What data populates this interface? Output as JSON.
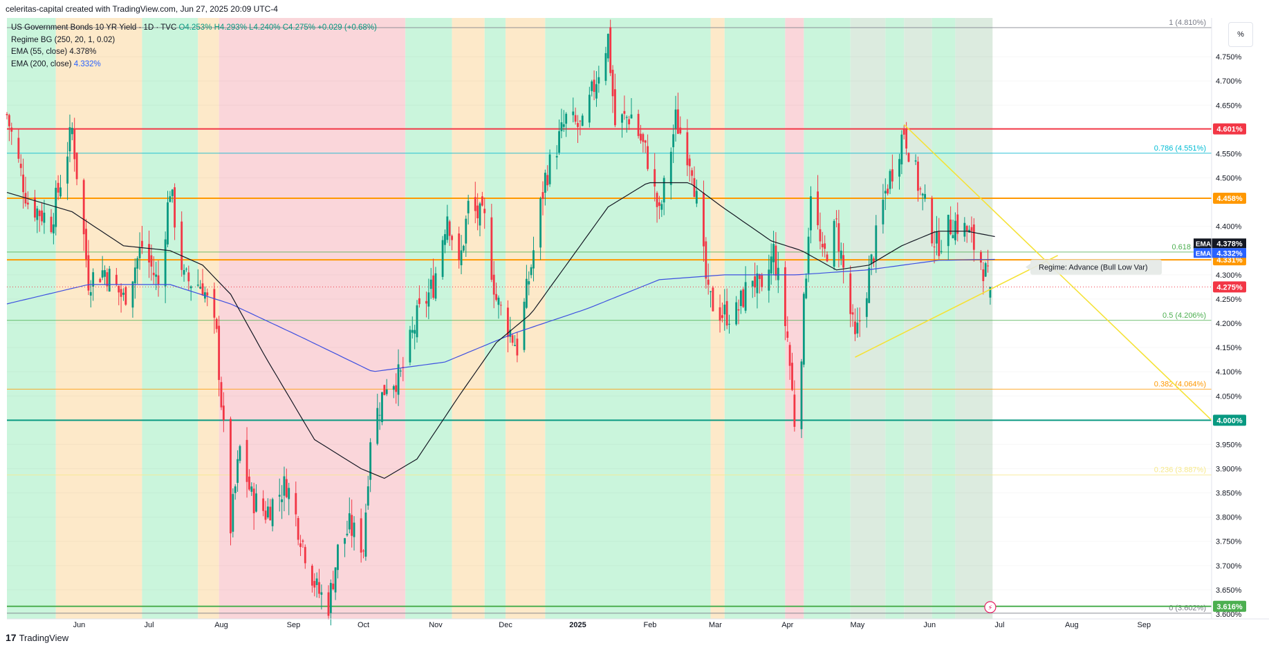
{
  "header": {
    "title": "celeritas-capital created with TradingView.com, Jun 27, 2025 20:09 UTC-4"
  },
  "legend": {
    "symbol": "US Government Bonds 10 YR Yield · 1D · TVC",
    "ohlc": "O4.253% H4.293% L4.240% C4.275% +0.029 (+0.68%)",
    "regime": "Regime BG (250, 20, 1, 0.02)",
    "ema55_label": "EMA (55, close)",
    "ema55_value": "4.378%",
    "ema200_label": "EMA (200, close)",
    "ema200_value": "4.332%"
  },
  "footer": {
    "brand": "TradingView"
  },
  "scale_button": "%",
  "chart_data": {
    "type": "candlestick",
    "title": "US Government Bonds 10 YR Yield",
    "ylim": [
      3.59,
      4.83
    ],
    "y_ticks": [
      "4.750%",
      "4.700%",
      "4.650%",
      "4.550%",
      "4.500%",
      "4.400%",
      "4.300%",
      "4.250%",
      "4.200%",
      "4.150%",
      "4.100%",
      "4.050%",
      "3.950%",
      "3.900%",
      "3.850%",
      "3.800%",
      "3.750%",
      "3.700%",
      "3.650%",
      "3.600%"
    ],
    "x_ticks": [
      "Jun",
      "Jul",
      "Aug",
      "Sep",
      "Oct",
      "Nov",
      "Dec",
      "2025",
      "Feb",
      "Mar",
      "Apr",
      "May",
      "Jun",
      "Jul",
      "Aug",
      "Sep"
    ],
    "date_range": [
      "2024-05-01",
      "2025-09-30"
    ],
    "last_bar_date": "2025-06-27",
    "close_anchors": [
      [
        "2024-05-01",
        4.63
      ],
      [
        "2024-05-10",
        4.45
      ],
      [
        "2024-05-20",
        4.41
      ],
      [
        "2024-05-29",
        4.6
      ],
      [
        "2024-06-05",
        4.29
      ],
      [
        "2024-06-12",
        4.31
      ],
      [
        "2024-06-20",
        4.25
      ],
      [
        "2024-06-28",
        4.36
      ],
      [
        "2024-07-05",
        4.28
      ],
      [
        "2024-07-10",
        4.48
      ],
      [
        "2024-07-16",
        4.29
      ],
      [
        "2024-07-24",
        4.28
      ],
      [
        "2024-07-30",
        4.17
      ],
      [
        "2024-08-05",
        3.78
      ],
      [
        "2024-08-09",
        3.94
      ],
      [
        "2024-08-14",
        3.84
      ],
      [
        "2024-08-20",
        3.81
      ],
      [
        "2024-08-29",
        3.87
      ],
      [
        "2024-09-06",
        3.73
      ],
      [
        "2024-09-11",
        3.65
      ],
      [
        "2024-09-16",
        3.62
      ],
      [
        "2024-09-20",
        3.73
      ],
      [
        "2024-09-25",
        3.78
      ],
      [
        "2024-10-01",
        3.74
      ],
      [
        "2024-10-04",
        3.97
      ],
      [
        "2024-10-11",
        4.08
      ],
      [
        "2024-10-17",
        4.09
      ],
      [
        "2024-10-24",
        4.21
      ],
      [
        "2024-10-31",
        4.28
      ],
      [
        "2024-11-06",
        4.43
      ],
      [
        "2024-11-11",
        4.31
      ],
      [
        "2024-11-15",
        4.44
      ],
      [
        "2024-11-22",
        4.41
      ],
      [
        "2024-11-27",
        4.25
      ],
      [
        "2024-12-06",
        4.15
      ],
      [
        "2024-12-12",
        4.32
      ],
      [
        "2024-12-18",
        4.5
      ],
      [
        "2024-12-27",
        4.62
      ],
      [
        "2025-01-03",
        4.6
      ],
      [
        "2025-01-08",
        4.69
      ],
      [
        "2025-01-14",
        4.79
      ],
      [
        "2025-01-17",
        4.61
      ],
      [
        "2025-01-24",
        4.63
      ],
      [
        "2025-01-31",
        4.54
      ],
      [
        "2025-02-05",
        4.42
      ],
      [
        "2025-02-12",
        4.62
      ],
      [
        "2025-02-19",
        4.53
      ],
      [
        "2025-02-26",
        4.25
      ],
      [
        "2025-03-04",
        4.22
      ],
      [
        "2025-03-10",
        4.22
      ],
      [
        "2025-03-17",
        4.3
      ],
      [
        "2025-03-21",
        4.25
      ],
      [
        "2025-03-26",
        4.35
      ],
      [
        "2025-04-01",
        4.17
      ],
      [
        "2025-04-04",
        4.0
      ],
      [
        "2025-04-07",
        4.15
      ],
      [
        "2025-04-11",
        4.48
      ],
      [
        "2025-04-16",
        4.33
      ],
      [
        "2025-04-22",
        4.4
      ],
      [
        "2025-04-30",
        4.16
      ],
      [
        "2025-05-06",
        4.3
      ],
      [
        "2025-05-13",
        4.47
      ],
      [
        "2025-05-21",
        4.6
      ],
      [
        "2025-05-28",
        4.47
      ],
      [
        "2025-06-04",
        4.36
      ],
      [
        "2025-06-11",
        4.41
      ],
      [
        "2025-06-17",
        4.39
      ],
      [
        "2025-06-23",
        4.33
      ],
      [
        "2025-06-27",
        4.275
      ]
    ],
    "ema55_anchors": [
      [
        "2024-05-01",
        4.47
      ],
      [
        "2024-05-29",
        4.43
      ],
      [
        "2024-06-20",
        4.36
      ],
      [
        "2024-07-10",
        4.35
      ],
      [
        "2024-07-24",
        4.32
      ],
      [
        "2024-08-05",
        4.26
      ],
      [
        "2024-08-20",
        4.13
      ],
      [
        "2024-09-10",
        3.96
      ],
      [
        "2024-09-30",
        3.9
      ],
      [
        "2024-10-10",
        3.88
      ],
      [
        "2024-10-24",
        3.92
      ],
      [
        "2024-11-11",
        4.05
      ],
      [
        "2024-11-27",
        4.16
      ],
      [
        "2024-12-12",
        4.22
      ],
      [
        "2024-12-30",
        4.34
      ],
      [
        "2025-01-14",
        4.44
      ],
      [
        "2025-01-31",
        4.49
      ],
      [
        "2025-02-18",
        4.49
      ],
      [
        "2025-03-04",
        4.44
      ],
      [
        "2025-03-25",
        4.37
      ],
      [
        "2025-04-07",
        4.35
      ],
      [
        "2025-04-22",
        4.31
      ],
      [
        "2025-05-06",
        4.32
      ],
      [
        "2025-05-20",
        4.36
      ],
      [
        "2025-06-04",
        4.39
      ],
      [
        "2025-06-17",
        4.39
      ],
      [
        "2025-06-30",
        4.378
      ]
    ],
    "ema200_anchors": [
      [
        "2024-05-01",
        4.24
      ],
      [
        "2024-06-05",
        4.28
      ],
      [
        "2024-07-10",
        4.28
      ],
      [
        "2024-08-05",
        4.24
      ],
      [
        "2024-09-05",
        4.17
      ],
      [
        "2024-10-05",
        4.1
      ],
      [
        "2024-11-05",
        4.12
      ],
      [
        "2024-12-05",
        4.18
      ],
      [
        "2025-01-05",
        4.23
      ],
      [
        "2025-02-05",
        4.29
      ],
      [
        "2025-03-05",
        4.3
      ],
      [
        "2025-04-05",
        4.3
      ],
      [
        "2025-05-05",
        4.31
      ],
      [
        "2025-06-05",
        4.33
      ],
      [
        "2025-06-30",
        4.332
      ]
    ],
    "price_lines": [
      {
        "value": 4.601,
        "label": "4.601%",
        "color": "#f23645"
      },
      {
        "value": 4.458,
        "label": "4.458%",
        "color": "#ff9800"
      },
      {
        "value": 4.331,
        "label": "4.331%",
        "color": "#ff9800"
      },
      {
        "value": 4.0,
        "label": "4.000%",
        "color": "#089981"
      },
      {
        "value": 3.616,
        "label": "3.616%",
        "color": "#4caf50"
      }
    ],
    "ema_labels": [
      {
        "name": "EMA",
        "value": 4.378,
        "label": "4.378%",
        "color": "#131722"
      },
      {
        "name": "EMA",
        "value": 4.332,
        "label": "4.332%",
        "color": "#2962ff"
      }
    ],
    "last_price": {
      "value": 4.275,
      "label": "4.275%",
      "color": "#f23645"
    },
    "fib_levels": [
      {
        "level": "1",
        "value": 4.81,
        "label": "1 (4.810%)",
        "color": "#787b86"
      },
      {
        "level": "0.786",
        "value": 4.551,
        "label": "0.786 (4.551%)",
        "color": "#00bcd4"
      },
      {
        "level": "0.618",
        "value": 4.347,
        "label": "0.618 (4.3",
        "color": "#4caf50"
      },
      {
        "level": "0.5",
        "value": 4.206,
        "label": "0.5 (4.206%)",
        "color": "#4caf50"
      },
      {
        "level": "0.382",
        "value": 4.064,
        "label": "0.382 (4.064%)",
        "color": "#ff9800"
      },
      {
        "level": "0.236",
        "value": 3.887,
        "label": "0.236 (3.887%)",
        "color": "#f7e98a"
      },
      {
        "level": "0",
        "value": 3.602,
        "label": "0 (3.602%)",
        "color": "#787b86"
      }
    ],
    "trendlines": [
      {
        "from": [
          "2025-05-21",
          4.61
        ],
        "to": [
          "2025-09-30",
          4.0
        ],
        "color": "#f5e237"
      },
      {
        "from": [
          "2025-04-30",
          4.13
        ],
        "to": [
          "2025-07-26",
          4.34
        ],
        "color": "#f5e237"
      }
    ],
    "annotation": "Regime: Advance (Bull Low Var)",
    "regimes": [
      {
        "start": "2024-05-01",
        "end": "2024-05-22",
        "regime": "green"
      },
      {
        "start": "2024-05-22",
        "end": "2024-06-28",
        "regime": "orange"
      },
      {
        "start": "2024-06-28",
        "end": "2024-07-22",
        "regime": "green"
      },
      {
        "start": "2024-07-22",
        "end": "2024-07-31",
        "regime": "orange"
      },
      {
        "start": "2024-07-31",
        "end": "2024-10-19",
        "regime": "red"
      },
      {
        "start": "2024-10-19",
        "end": "2024-11-08",
        "regime": "green"
      },
      {
        "start": "2024-11-08",
        "end": "2024-11-22",
        "regime": "orange"
      },
      {
        "start": "2024-11-22",
        "end": "2024-12-01",
        "regime": "green"
      },
      {
        "start": "2024-12-01",
        "end": "2024-12-18",
        "regime": "orange"
      },
      {
        "start": "2024-12-18",
        "end": "2025-02-27",
        "regime": "green"
      },
      {
        "start": "2025-02-27",
        "end": "2025-03-05",
        "regime": "orange"
      },
      {
        "start": "2025-03-05",
        "end": "2025-03-31",
        "regime": "green"
      },
      {
        "start": "2025-03-31",
        "end": "2025-04-08",
        "regime": "red"
      },
      {
        "start": "2025-04-08",
        "end": "2025-04-28",
        "regime": "green"
      },
      {
        "start": "2025-04-28",
        "end": "2025-05-13",
        "regime": "grey"
      },
      {
        "start": "2025-05-13",
        "end": "2025-05-21",
        "regime": "green"
      },
      {
        "start": "2025-05-21",
        "end": "2025-06-02",
        "regime": "grey"
      },
      {
        "start": "2025-06-02",
        "end": "2025-06-12",
        "regime": "green"
      },
      {
        "start": "2025-06-12",
        "end": "2025-06-28",
        "regime": "grey"
      }
    ],
    "colors": {
      "up": "#089981",
      "down": "#f23645",
      "ema55": "#131722",
      "ema200": "#3d4fe0",
      "regime_green": "#caf5dc",
      "regime_orange": "#fde9c9",
      "regime_red": "#fad6da",
      "regime_grey": "#dcebdf"
    }
  }
}
